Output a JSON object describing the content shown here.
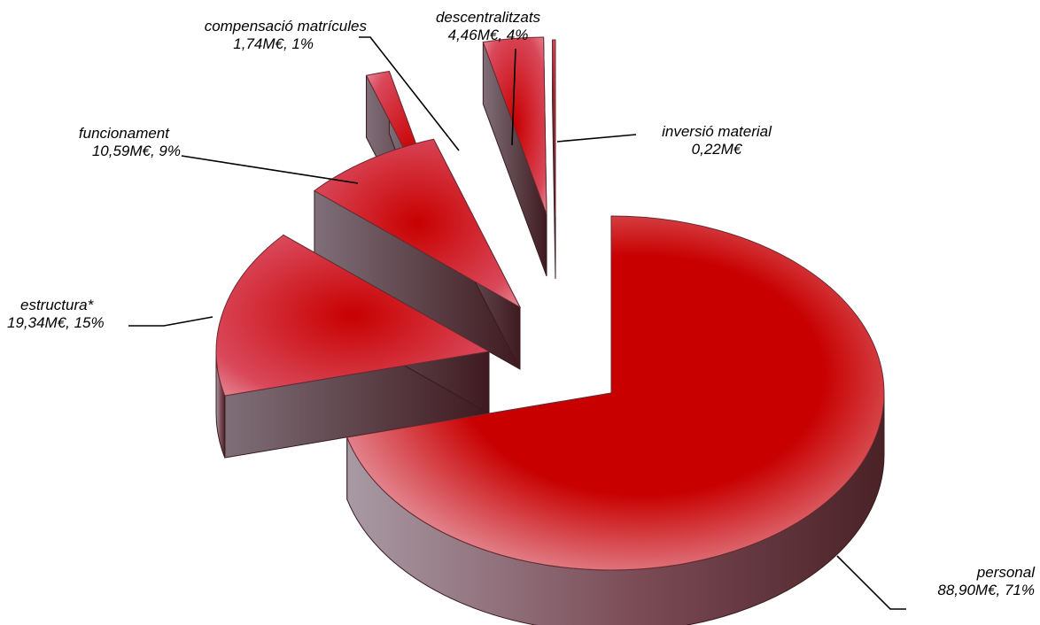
{
  "chart_data": {
    "type": "pie",
    "style": "3d-exploded",
    "title": "",
    "legend": "none",
    "slices": [
      {
        "name": "personal",
        "value": 88.9,
        "value_label": "88,90M€, 71%"
      },
      {
        "name": "estructura*",
        "value": 19.34,
        "value_label": "19,34M€, 15%"
      },
      {
        "name": "funcionament",
        "value": 10.59,
        "value_label": "10,59M€, 9%"
      },
      {
        "name": "compensació matrícules",
        "value": 1.74,
        "value_label": "1,74M€, 1%"
      },
      {
        "name": "descentralitzats",
        "value": 4.46,
        "value_label": "4,46M€, 4%"
      },
      {
        "name": "inversió material",
        "value": 0.22,
        "value_label": "0,22M€"
      }
    ],
    "colors": {
      "slice_main": "#c80000",
      "slice_light": "#f4dbe1",
      "side_light": "#a89aa4",
      "side_dark": "#4a2226",
      "leader_line": "#000000"
    }
  }
}
